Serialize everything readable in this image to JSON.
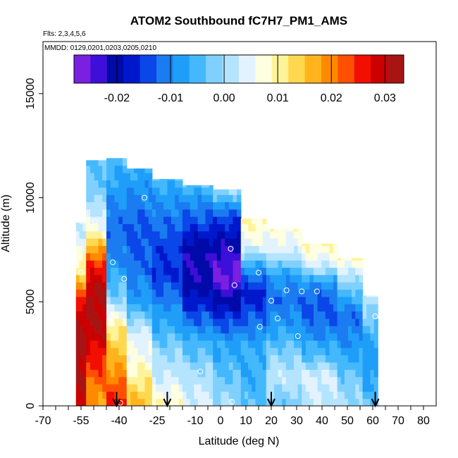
{
  "chart_data": {
    "type": "heatmap",
    "title": "ATOM2 Southbound fC7H7_PM1_AMS",
    "flights_label": "Flts: 2,3,4,5,6",
    "mmdd_label": "MMDD: 0129,0201,0203,0205,0210",
    "xlabel": "Latitude (deg N)",
    "ylabel": "Altitude (m)",
    "xlim": [
      -70,
      85
    ],
    "ylim": [
      0,
      17500
    ],
    "x_ticks": [
      -70,
      -55,
      -40,
      -25,
      -10,
      0,
      10,
      20,
      30,
      40,
      50,
      60,
      70,
      80
    ],
    "x_tick_labels": [
      "-70",
      "-55",
      "-40",
      "-25",
      "-10",
      "0",
      "10",
      "20",
      "30",
      "40",
      "50",
      "60",
      "70",
      "80"
    ],
    "x_minor_ticks": [
      -65,
      -60,
      -50,
      -45,
      -35,
      -30,
      -20,
      -15,
      -5,
      5,
      15,
      25,
      35,
      45,
      55,
      65,
      75
    ],
    "y_ticks": [
      0,
      5000,
      10000,
      15000
    ],
    "y_tick_labels": [
      "0",
      "5000",
      "10000",
      "15000"
    ],
    "colorbar": {
      "range": [
        -0.028,
        0.0335
      ],
      "ticks": [
        -0.02,
        -0.01,
        0.0,
        0.01,
        0.02,
        0.03
      ],
      "tick_labels": [
        "-0.02",
        "-0.01",
        "0.00",
        "0.01",
        "0.02",
        "0.03"
      ],
      "colors": [
        "#7b1fe0",
        "#3d0fd8",
        "#000aa8",
        "#0018cc",
        "#0a46e8",
        "#1a7cf0",
        "#1e9ef8",
        "#44b8fc",
        "#80d0ff",
        "#b4e4ff",
        "#e2f3ff",
        "#fefee0",
        "#fff39a",
        "#ffd850",
        "#ffb41e",
        "#ff8a00",
        "#ff5000",
        "#f20e00",
        "#cc0000",
        "#a81414"
      ]
    },
    "arrow_latitudes": [
      -41,
      -21,
      20,
      61
    ],
    "profiles": [
      {
        "lat_start": -57,
        "lat_end": -53,
        "alt_top": 8800,
        "values": [
          0.03,
          0.031,
          0.032,
          0.031,
          0.025,
          0.012,
          0.004,
          0.003
        ]
      },
      {
        "lat_start": -53,
        "lat_end": -45,
        "alt_top": 11800,
        "values": [
          0.018,
          0.024,
          0.03,
          0.032,
          0.024,
          0.006,
          -0.002,
          -0.004
        ]
      },
      {
        "lat_start": -45,
        "lat_end": -37,
        "alt_top": 11900,
        "values": [
          0.026,
          0.018,
          0.012,
          -0.002,
          -0.01,
          -0.012,
          -0.008,
          -0.004
        ]
      },
      {
        "lat_start": -37,
        "lat_end": -27,
        "alt_top": 11400,
        "values": [
          0.016,
          0.008,
          0.004,
          -0.008,
          -0.012,
          -0.014,
          -0.01,
          -0.006
        ]
      },
      {
        "lat_start": -27,
        "lat_end": -15,
        "alt_top": 10900,
        "values": [
          0.008,
          0.002,
          -0.004,
          -0.01,
          -0.016,
          -0.014,
          -0.01,
          -0.004
        ]
      },
      {
        "lat_start": -15,
        "lat_end": -3,
        "alt_top": 10600,
        "values": [
          0.004,
          0.0,
          -0.006,
          -0.016,
          -0.022,
          -0.02,
          -0.012,
          -0.004
        ]
      },
      {
        "lat_start": -3,
        "lat_end": 8,
        "alt_top": 10400,
        "values": [
          0.0,
          -0.004,
          -0.008,
          -0.018,
          -0.026,
          -0.022,
          -0.014,
          0.002
        ]
      },
      {
        "lat_start": 8,
        "lat_end": 18,
        "alt_top": 9000,
        "values": [
          -0.004,
          -0.006,
          -0.006,
          -0.012,
          -0.018,
          -0.008,
          0.006,
          0.01
        ]
      },
      {
        "lat_start": 18,
        "lat_end": 32,
        "alt_top": 8500,
        "values": [
          -0.002,
          0.002,
          -0.002,
          -0.008,
          -0.012,
          -0.008,
          0.004,
          0.008
        ]
      },
      {
        "lat_start": 32,
        "lat_end": 46,
        "alt_top": 7800,
        "values": [
          0.002,
          0.004,
          -0.004,
          -0.01,
          -0.014,
          -0.01,
          0.004,
          0.01
        ]
      },
      {
        "lat_start": 46,
        "lat_end": 56,
        "alt_top": 7100,
        "values": [
          0.0,
          -0.002,
          -0.006,
          -0.01,
          -0.012,
          -0.006,
          0.002,
          0.01
        ]
      },
      {
        "lat_start": 56,
        "lat_end": 62,
        "alt_top": 5300,
        "values": [
          -0.004,
          -0.006,
          -0.008,
          -0.008,
          -0.006,
          -0.004,
          0.0,
          0.004
        ]
      }
    ],
    "sample_points": [
      {
        "lat": -39.5,
        "alt": 150
      },
      {
        "lat": 4.5,
        "alt": 200
      },
      {
        "lat": -8,
        "alt": 1650
      },
      {
        "lat": 30.5,
        "alt": 3350
      },
      {
        "lat": 15.5,
        "alt": 3800
      },
      {
        "lat": -43,
        "alt": 4300
      },
      {
        "lat": 22.5,
        "alt": 4200
      },
      {
        "lat": 20,
        "alt": 5050
      },
      {
        "lat": 26,
        "alt": 5550
      },
      {
        "lat": 32,
        "alt": 5500
      },
      {
        "lat": 38,
        "alt": 5500
      },
      {
        "lat": 5.5,
        "alt": 5800
      },
      {
        "lat": -38,
        "alt": 6100
      },
      {
        "lat": 15,
        "alt": 6400
      },
      {
        "lat": -55,
        "alt": 6400
      },
      {
        "lat": -42.5,
        "alt": 6900
      },
      {
        "lat": 4,
        "alt": 7550
      },
      {
        "lat": -49.5,
        "alt": 8850
      },
      {
        "lat": -30,
        "alt": 10000
      },
      {
        "lat": 61,
        "alt": 4300
      }
    ]
  }
}
